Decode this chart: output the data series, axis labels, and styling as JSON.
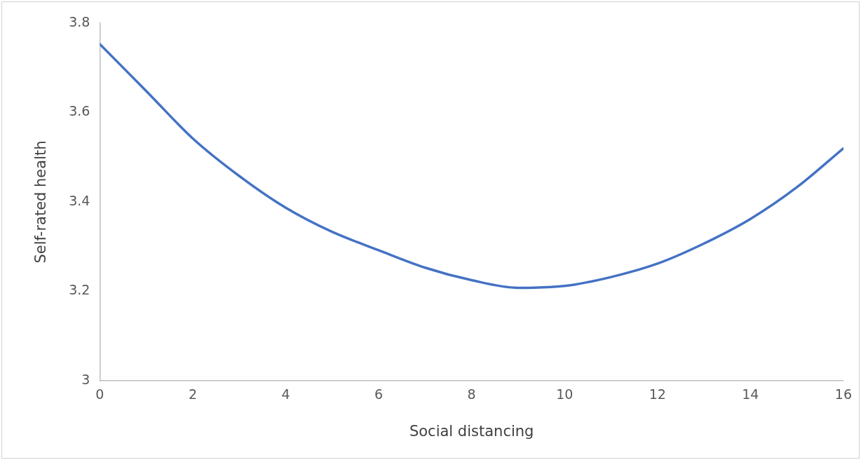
{
  "chart_data": {
    "type": "line",
    "xlabel": "Social distancing",
    "ylabel": "Self-rated health",
    "x": [
      0,
      1,
      2,
      3,
      4,
      5,
      6,
      7,
      8,
      9,
      10,
      11,
      12,
      13,
      14,
      15,
      16
    ],
    "series": [
      {
        "color": "#4472c4",
        "values": [
          3.753,
          3.648,
          3.542,
          3.458,
          3.387,
          3.333,
          3.292,
          3.253,
          3.225,
          3.208,
          3.212,
          3.232,
          3.262,
          3.307,
          3.362,
          3.433,
          3.52
        ]
      }
    ],
    "xlim": [
      0,
      16
    ],
    "xticks": [
      0,
      2,
      4,
      6,
      8,
      10,
      12,
      14,
      16
    ],
    "ylim": [
      3,
      3.8
    ],
    "yticks": [
      3,
      3.2,
      3.4,
      3.6,
      3.8
    ],
    "grid": false,
    "legend": false,
    "marker": "none",
    "line_style": "solid"
  }
}
